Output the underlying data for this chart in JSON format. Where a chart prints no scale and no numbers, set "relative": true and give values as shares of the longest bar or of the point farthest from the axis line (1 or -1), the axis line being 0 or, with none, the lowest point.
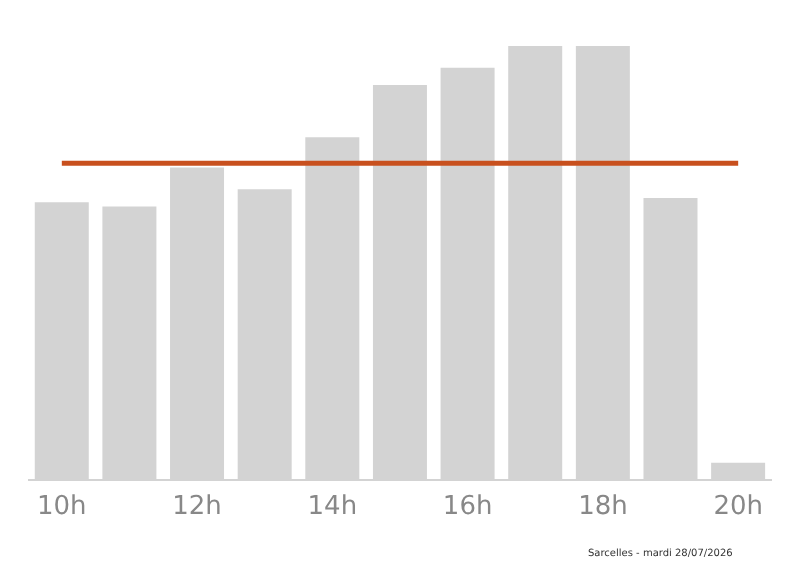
{
  "chart_data": {
    "type": "bar",
    "relative": true,
    "categories": [
      "10h",
      null,
      "12h",
      null,
      "14h",
      null,
      "16h",
      null,
      "18h",
      null,
      "20h"
    ],
    "values": [
      0.64,
      0.63,
      0.72,
      0.67,
      0.79,
      0.91,
      0.95,
      1,
      1,
      0.65,
      0.04
    ],
    "color": "#d3d3d3",
    "ref_lines": [
      {
        "axis": "y",
        "value": 0.73,
        "color": "#c8501e"
      }
    ],
    "annotations": [
      "Sarcelles - mardi 28/07/2026"
    ],
    "grid": false,
    "legend": false
  }
}
